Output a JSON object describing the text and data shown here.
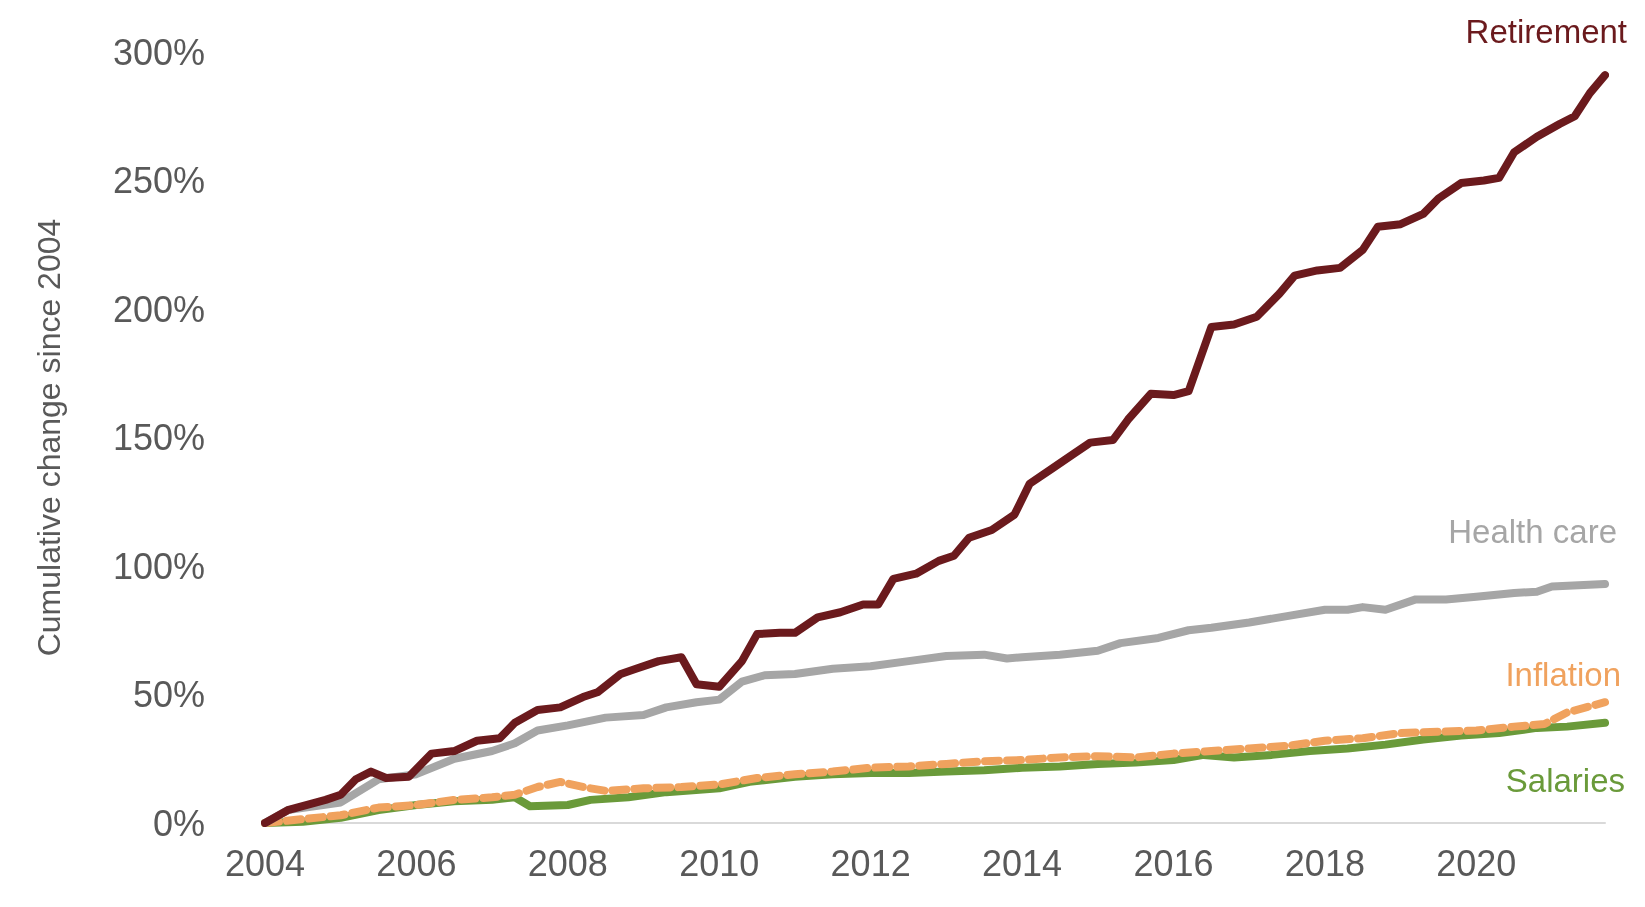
{
  "chart_data": {
    "type": "line",
    "ylabel": "Cumulative change since 2004",
    "legend": false,
    "grid": false,
    "marker": "none",
    "xlim": [
      2004,
      2021.7
    ],
    "xticks": [
      2004,
      2006,
      2008,
      2010,
      2012,
      2014,
      2016,
      2018,
      2020
    ],
    "ylim": [
      0,
      300
    ],
    "yticks": [
      {
        "value": 0,
        "label": "0%"
      },
      {
        "value": 50,
        "label": "50%"
      },
      {
        "value": 100,
        "label": "100%"
      },
      {
        "value": 150,
        "label": "150%"
      },
      {
        "value": 200,
        "label": "200%"
      },
      {
        "value": 250,
        "label": "250%"
      },
      {
        "value": 300,
        "label": "300%"
      }
    ],
    "series": [
      {
        "name": "Retirement",
        "color": "#6b1a1d",
        "line_style": "solid",
        "x": [
          2004.0,
          2004.3,
          2004.8,
          2005.0,
          2005.2,
          2005.4,
          2005.6,
          2005.9,
          2006.2,
          2006.5,
          2006.8,
          2007.1,
          2007.3,
          2007.6,
          2007.9,
          2008.2,
          2008.4,
          2008.7,
          2008.9,
          2009.2,
          2009.5,
          2009.7,
          2010.0,
          2010.3,
          2010.5,
          2010.8,
          2011.0,
          2011.3,
          2011.6,
          2011.9,
          2012.1,
          2012.3,
          2012.6,
          2012.9,
          2013.1,
          2013.3,
          2013.6,
          2013.9,
          2014.1,
          2014.4,
          2014.7,
          2014.9,
          2015.2,
          2015.4,
          2015.7,
          2016.0,
          2016.2,
          2016.5,
          2016.8,
          2017.1,
          2017.4,
          2017.6,
          2017.9,
          2018.2,
          2018.5,
          2018.7,
          2019.0,
          2019.3,
          2019.5,
          2019.8,
          2020.1,
          2020.3,
          2020.5,
          2020.8,
          2021.1,
          2021.3,
          2021.5,
          2021.7
        ],
        "values": [
          0,
          5,
          9,
          11,
          17,
          20,
          17.5,
          18,
          27,
          28,
          32,
          33,
          39,
          44,
          45,
          49,
          51,
          58,
          60,
          63,
          64.5,
          54,
          53,
          63,
          73.5,
          74,
          74,
          80,
          82,
          85,
          85,
          95,
          97,
          102,
          104,
          111,
          114,
          120,
          132,
          138,
          144,
          148,
          149,
          157,
          167,
          166.5,
          168,
          193,
          194,
          197,
          206,
          213,
          215,
          216,
          223,
          232,
          233,
          237,
          243,
          249,
          250,
          251,
          261,
          267,
          272,
          275,
          284,
          291
        ]
      },
      {
        "name": "Health care",
        "color": "#a6a6a6",
        "line_style": "solid",
        "x": [
          2004.0,
          2004.3,
          2005.0,
          2005.5,
          2006.0,
          2006.5,
          2007.0,
          2007.3,
          2007.6,
          2008.0,
          2008.5,
          2009.0,
          2009.3,
          2009.7,
          2010.0,
          2010.3,
          2010.6,
          2011.0,
          2011.5,
          2012.0,
          2012.5,
          2013.0,
          2013.5,
          2013.8,
          2014.0,
          2014.5,
          2015.0,
          2015.3,
          2015.8,
          2016.2,
          2016.5,
          2017.0,
          2017.5,
          2018.0,
          2018.3,
          2018.5,
          2018.8,
          2019.2,
          2019.6,
          2020.0,
          2020.5,
          2020.8,
          2021.0,
          2021.7
        ],
        "values": [
          0,
          5,
          8,
          17,
          19,
          25,
          28,
          31,
          36,
          38,
          41,
          42,
          45,
          47,
          48,
          55,
          57.5,
          58,
          60,
          61,
          63,
          65,
          65.5,
          64,
          64.5,
          65.5,
          67,
          70,
          72,
          75,
          76,
          78,
          80.5,
          83,
          83,
          84,
          83,
          87,
          87,
          88,
          89.5,
          90,
          92,
          93
        ]
      },
      {
        "name": "Inflation",
        "color": "#f0a25e",
        "line_style": "dashed",
        "x": [
          2004.0,
          2004.5,
          2005.0,
          2005.5,
          2006.0,
          2006.5,
          2007.0,
          2007.3,
          2007.6,
          2007.9,
          2008.2,
          2008.5,
          2009.0,
          2009.5,
          2010.0,
          2010.5,
          2011.0,
          2011.5,
          2012.0,
          2012.5,
          2013.0,
          2013.5,
          2014.0,
          2014.5,
          2015.0,
          2015.5,
          2016.0,
          2016.5,
          2017.0,
          2017.5,
          2018.0,
          2018.5,
          2019.0,
          2019.5,
          2020.0,
          2020.5,
          2020.9,
          2021.2,
          2021.7
        ],
        "values": [
          0,
          1.5,
          3,
          6,
          7,
          9,
          10,
          11,
          14,
          16,
          14,
          12.5,
          13.5,
          14,
          15,
          17.5,
          19,
          20,
          21.5,
          22,
          23,
          24,
          24.5,
          25.5,
          26,
          25.5,
          27,
          28,
          29,
          30,
          32,
          33,
          35,
          35.5,
          36,
          37.5,
          38.5,
          43,
          47
        ]
      },
      {
        "name": "Salaries",
        "color": "#6a9a3a",
        "line_style": "solid",
        "x": [
          2004.0,
          2004.5,
          2005.0,
          2005.5,
          2006.0,
          2006.5,
          2007.0,
          2007.3,
          2007.5,
          2008.0,
          2008.3,
          2008.8,
          2009.3,
          2010.0,
          2010.4,
          2011.0,
          2011.5,
          2012.0,
          2012.5,
          2013.0,
          2013.5,
          2014.0,
          2014.5,
          2015.0,
          2015.5,
          2016.0,
          2016.4,
          2016.8,
          2017.3,
          2017.8,
          2018.3,
          2018.8,
          2019.3,
          2019.8,
          2020.3,
          2020.8,
          2021.2,
          2021.7
        ],
        "values": [
          0,
          0.5,
          2,
          5,
          7,
          8.5,
          9,
          10,
          6.5,
          7,
          9,
          10,
          12,
          13.5,
          16,
          18,
          19,
          19.5,
          19.5,
          20,
          20.5,
          21.5,
          22,
          23,
          23.5,
          24.5,
          26.5,
          25.5,
          26.5,
          28,
          29,
          30.5,
          32.5,
          34,
          35,
          37,
          37.5,
          39
        ]
      }
    ]
  }
}
